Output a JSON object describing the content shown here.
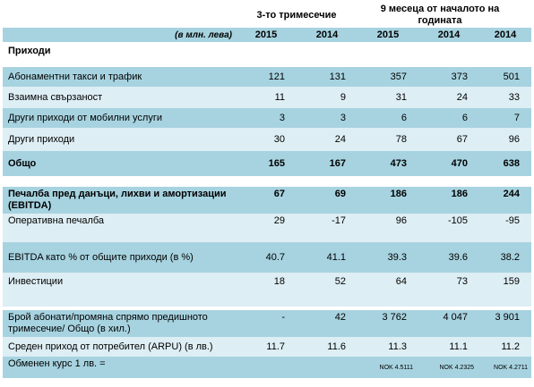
{
  "header": {
    "group_q3": "3-то тримесечие",
    "group_9m": "9  месеца  от  началото на годината",
    "units": "(в млн. лева)",
    "years": [
      "2015",
      "2014",
      "2015",
      "2014",
      "2014"
    ]
  },
  "section_title": "Приходи",
  "rows": [
    {
      "label": "Абонаментни такси и трафик",
      "values": [
        "121",
        "131",
        "357",
        "373",
        "501"
      ]
    },
    {
      "label": "Взаимна свързаност",
      "values": [
        "11",
        "9",
        "31",
        "24",
        "33"
      ]
    },
    {
      "label": "Други приходи от мобилни услуги",
      "values": [
        "3",
        "3",
        "6",
        "6",
        "7"
      ]
    },
    {
      "label": "Други приходи",
      "values": [
        "30",
        "24",
        "78",
        "67",
        "96"
      ]
    },
    {
      "label": "Общо",
      "values": [
        "165",
        "167",
        "473",
        "470",
        "638"
      ]
    },
    {
      "label": "Печалба пред данъци, лихви и амортизации (EBITDA)",
      "values": [
        "67",
        "69",
        "186",
        "186",
        "244"
      ]
    },
    {
      "label": "Оперативна печалба",
      "values": [
        "29",
        "-17",
        "96",
        "-105",
        "-95"
      ]
    },
    {
      "label": "EBITDA като % от общите приходи (в %)",
      "values": [
        "40.7",
        "41.1",
        "39.3",
        "39.6",
        "38.2"
      ]
    },
    {
      "label": "Инвестиции",
      "values": [
        "18",
        "52",
        "64",
        "73",
        "159"
      ]
    },
    {
      "label": "Брой абонати/промяна спрямо предишното тримесечие/ Общо (в хил.)",
      "values": [
        "-",
        "42",
        "3 762",
        "4 047",
        "3 901"
      ]
    },
    {
      "label": "Среден приход от потребител (ARPU) (в лв.)",
      "values": [
        "11.7",
        "11.6",
        "11.3",
        "11.1",
        "11.2"
      ]
    },
    {
      "label": "Обменен курс 1 лв. =",
      "values": [
        "",
        "",
        "NOK 4.5111",
        "NOK 4.2325",
        "NOK 4.2711"
      ]
    }
  ]
}
